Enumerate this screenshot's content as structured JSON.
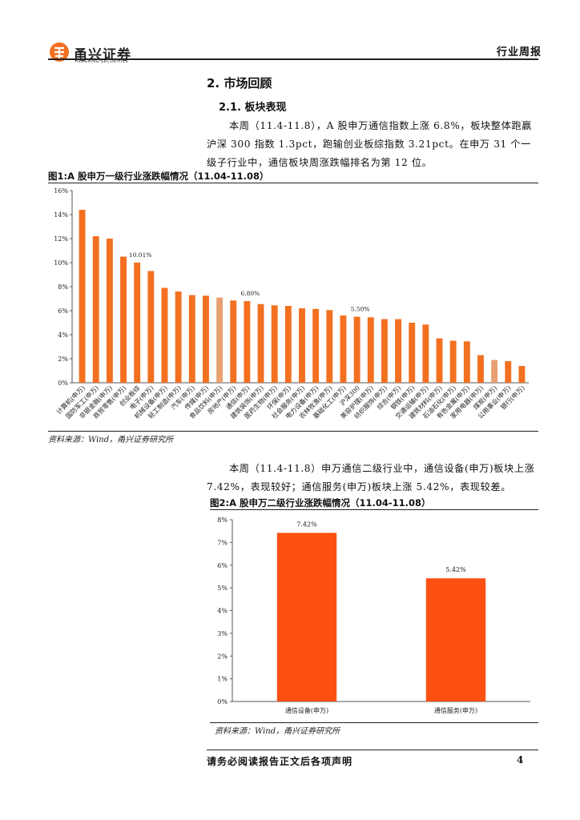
{
  "header": {
    "brand_cn": "甬兴证券",
    "brand_en": "YONGXING SECURITIES",
    "report_type": "行业周报"
  },
  "section": {
    "title": "2. 市场回顾",
    "subtitle": "2.1. 板块表现",
    "para1": "本周（11.4-11.8），A 股申万通信指数上涨 6.8%，板块整体跑赢沪深 300 指数 1.3pct，跑输创业板综指数 3.21pct。在申万 31 个一级子行业中，通信板块周涨跌幅排名为第 12 位。",
    "para2": "本周（11.4-11.8）申万通信二级行业中，通信设备(申万)板块上涨 7.42%，表现较好；通信服务(申万)板块上涨 5.42%，表现较差。"
  },
  "figure1": {
    "title": "图1:A 股申万一级行业涨跌幅情况（11.04-11.08）",
    "source": "资料来源：Wind，甬兴证券研究所"
  },
  "figure2": {
    "title": "图2:A 股申万二级行业涨跌幅情况（11.04-11.08）",
    "source": "资料来源：Wind，甬兴证券研究所"
  },
  "chart_data": [
    {
      "type": "bar",
      "title": "图1:A 股申万一级行业涨跌幅情况（11.04-11.08）",
      "categories": [
        "计算机(申万)",
        "国防军工(申万)",
        "非银金融(申万)",
        "商贸零售(申万)",
        "创业板综",
        "电子(申万)",
        "机械设备(申万)",
        "轻工制造(申万)",
        "汽车(申万)",
        "传媒(申万)",
        "食品饮料(申万)",
        "房地产(申万)",
        "通信(申万)",
        "建筑装饰(申万)",
        "医药生物(申万)",
        "环保(申万)",
        "社会服务(申万)",
        "电力设备(申万)",
        "农林牧渔(申万)",
        "基础化工(申万)",
        "沪深300",
        "美容护理(申万)",
        "纺织服饰(申万)",
        "综合(申万)",
        "钢铁(申万)",
        "交通运输(申万)",
        "建筑材料(申万)",
        "石油石化(申万)",
        "有色金属(申万)",
        "家用电器(申万)",
        "煤炭(申万)",
        "公用事业(申万)",
        "银行(申万)"
      ],
      "values": [
        14.4,
        12.2,
        12.0,
        10.5,
        10.01,
        9.3,
        7.9,
        7.6,
        7.3,
        7.25,
        7.1,
        6.85,
        6.8,
        6.55,
        6.45,
        6.4,
        6.2,
        6.15,
        6.05,
        5.6,
        5.5,
        5.45,
        5.3,
        5.3,
        5.0,
        4.85,
        3.7,
        3.5,
        3.45,
        2.3,
        1.9,
        1.8,
        1.4
      ],
      "highlight": [
        "食品饮料(申万)",
        "煤炭(申万)"
      ],
      "data_labels": {
        "创业板综": "10.01%",
        "通信(申万)": "6.80%",
        "沪深300": "5.50%"
      },
      "ylim": [
        0,
        16
      ],
      "yticks": [
        "0%",
        "2%",
        "4%",
        "6%",
        "8%",
        "10%",
        "12%",
        "14%",
        "16%"
      ],
      "colors": {
        "bar": "#f37021",
        "highlight": "#e8a070"
      }
    },
    {
      "type": "bar",
      "title": "图2:A 股申万二级行业涨跌幅情况（11.04-11.08）",
      "categories": [
        "通信设备(申万)",
        "通信服务(申万)"
      ],
      "values": [
        7.42,
        5.42
      ],
      "data_labels": [
        "7.42%",
        "5.42%"
      ],
      "ylim": [
        0,
        8
      ],
      "yticks": [
        "0%",
        "1%",
        "2%",
        "3%",
        "4%",
        "5%",
        "6%",
        "7%",
        "8%"
      ],
      "colors": {
        "bar": "#fb5012"
      }
    }
  ],
  "footer": {
    "disclaimer": "请务必阅读报告正文后各项声明",
    "page": "4"
  }
}
